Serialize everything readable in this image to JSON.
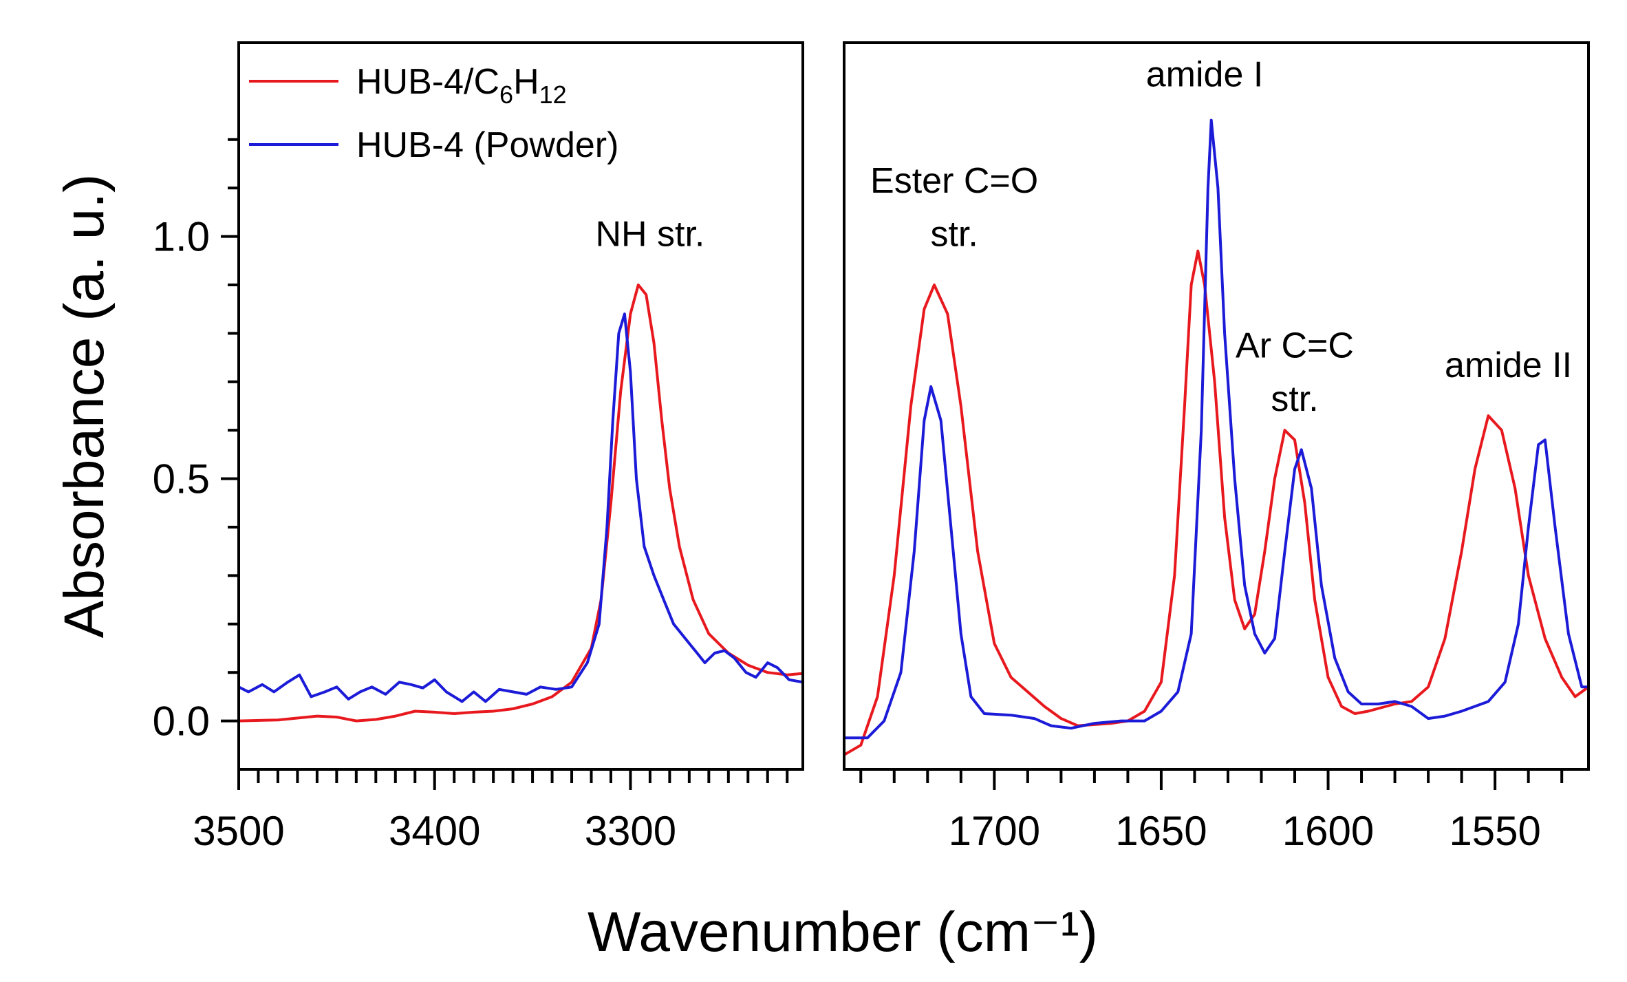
{
  "chart_data": [
    {
      "type": "line",
      "panel": "left",
      "xlim": [
        3500,
        3212
      ],
      "ylim": [
        -0.1,
        1.4
      ],
      "ylabel": "Absorbance (a. u.)",
      "xlabel": "Wavenumber (cm⁻¹)",
      "xticks": [
        3500,
        3400,
        3300
      ],
      "xtick_labels": [
        "3500",
        "3400",
        "3300"
      ],
      "yticks": [
        0.0,
        0.5,
        1.0
      ],
      "ytick_labels": [
        "0.0",
        "0.5",
        "1.0"
      ],
      "legend": {
        "position": "top-left",
        "entries": [
          {
            "label": "HUB-4/C",
            "sub1": "6",
            "mid": "H",
            "sub2": "12",
            "color": "#e8191e"
          },
          {
            "label": "HUB-4 (Powder)",
            "color": "#1b1bd8"
          }
        ]
      },
      "annotations": [
        {
          "text": "NH str.",
          "x": 3290,
          "y": 0.98
        }
      ],
      "series": [
        {
          "name": "HUB-4/C6H12",
          "color": "#e8191e",
          "points": [
            [
              3500,
              0.0
            ],
            [
              3480,
              0.002
            ],
            [
              3460,
              0.01
            ],
            [
              3450,
              0.008
            ],
            [
              3440,
              0.0
            ],
            [
              3430,
              0.003
            ],
            [
              3420,
              0.01
            ],
            [
              3410,
              0.02
            ],
            [
              3400,
              0.018
            ],
            [
              3390,
              0.015
            ],
            [
              3380,
              0.018
            ],
            [
              3370,
              0.02
            ],
            [
              3360,
              0.025
            ],
            [
              3350,
              0.035
            ],
            [
              3340,
              0.05
            ],
            [
              3330,
              0.08
            ],
            [
              3320,
              0.15
            ],
            [
              3315,
              0.25
            ],
            [
              3310,
              0.45
            ],
            [
              3305,
              0.68
            ],
            [
              3300,
              0.84
            ],
            [
              3296,
              0.9
            ],
            [
              3292,
              0.88
            ],
            [
              3288,
              0.78
            ],
            [
              3284,
              0.62
            ],
            [
              3280,
              0.48
            ],
            [
              3275,
              0.36
            ],
            [
              3268,
              0.25
            ],
            [
              3260,
              0.18
            ],
            [
              3250,
              0.14
            ],
            [
              3240,
              0.115
            ],
            [
              3230,
              0.1
            ],
            [
              3220,
              0.095
            ],
            [
              3212,
              0.098
            ]
          ]
        },
        {
          "name": "HUB-4 (Powder)",
          "color": "#1b1bd8",
          "points": [
            [
              3500,
              0.07
            ],
            [
              3495,
              0.06
            ],
            [
              3488,
              0.075
            ],
            [
              3482,
              0.06
            ],
            [
              3475,
              0.08
            ],
            [
              3469,
              0.095
            ],
            [
              3463,
              0.05
            ],
            [
              3456,
              0.06
            ],
            [
              3450,
              0.07
            ],
            [
              3444,
              0.045
            ],
            [
              3438,
              0.06
            ],
            [
              3432,
              0.07
            ],
            [
              3425,
              0.055
            ],
            [
              3418,
              0.08
            ],
            [
              3412,
              0.075
            ],
            [
              3406,
              0.068
            ],
            [
              3400,
              0.085
            ],
            [
              3394,
              0.06
            ],
            [
              3386,
              0.04
            ],
            [
              3380,
              0.06
            ],
            [
              3374,
              0.04
            ],
            [
              3367,
              0.065
            ],
            [
              3360,
              0.06
            ],
            [
              3353,
              0.055
            ],
            [
              3346,
              0.07
            ],
            [
              3338,
              0.065
            ],
            [
              3330,
              0.07
            ],
            [
              3322,
              0.12
            ],
            [
              3316,
              0.2
            ],
            [
              3312,
              0.4
            ],
            [
              3309,
              0.62
            ],
            [
              3306,
              0.8
            ],
            [
              3303,
              0.84
            ],
            [
              3300,
              0.72
            ],
            [
              3297,
              0.5
            ],
            [
              3293,
              0.36
            ],
            [
              3288,
              0.3
            ],
            [
              3283,
              0.25
            ],
            [
              3278,
              0.2
            ],
            [
              3274,
              0.18
            ],
            [
              3270,
              0.16
            ],
            [
              3266,
              0.14
            ],
            [
              3262,
              0.12
            ],
            [
              3257,
              0.14
            ],
            [
              3252,
              0.145
            ],
            [
              3247,
              0.13
            ],
            [
              3241,
              0.1
            ],
            [
              3236,
              0.09
            ],
            [
              3230,
              0.12
            ],
            [
              3225,
              0.11
            ],
            [
              3219,
              0.085
            ],
            [
              3212,
              0.08
            ]
          ]
        }
      ]
    },
    {
      "type": "line",
      "panel": "right",
      "xlim": [
        1745,
        1522
      ],
      "ylim": [
        -0.1,
        1.4
      ],
      "xticks": [
        1700,
        1650,
        1600,
        1550
      ],
      "xtick_labels": [
        "1700",
        "1650",
        "1600",
        "1550"
      ],
      "annotations": [
        {
          "text": "Ester C=O",
          "x": 1712,
          "y": 1.09
        },
        {
          "text": "str.",
          "x": 1712,
          "y": 0.98
        },
        {
          "text": "amide I",
          "x": 1637,
          "y": 1.31
        },
        {
          "text": "Ar C=C",
          "x": 1610,
          "y": 0.75
        },
        {
          "text": "str.",
          "x": 1610,
          "y": 0.64
        },
        {
          "text": "amide II",
          "x": 1546,
          "y": 0.71
        }
      ],
      "series": [
        {
          "name": "HUB-4/C6H12",
          "color": "#e8191e",
          "points": [
            [
              1745,
              -0.07
            ],
            [
              1740,
              -0.05
            ],
            [
              1735,
              0.05
            ],
            [
              1730,
              0.3
            ],
            [
              1725,
              0.65
            ],
            [
              1721,
              0.85
            ],
            [
              1718,
              0.9
            ],
            [
              1714,
              0.84
            ],
            [
              1710,
              0.65
            ],
            [
              1705,
              0.35
            ],
            [
              1700,
              0.16
            ],
            [
              1695,
              0.09
            ],
            [
              1690,
              0.06
            ],
            [
              1685,
              0.03
            ],
            [
              1680,
              0.005
            ],
            [
              1675,
              -0.01
            ],
            [
              1665,
              -0.005
            ],
            [
              1660,
              0.0
            ],
            [
              1655,
              0.02
            ],
            [
              1650,
              0.08
            ],
            [
              1646,
              0.3
            ],
            [
              1643,
              0.65
            ],
            [
              1641,
              0.9
            ],
            [
              1639,
              0.97
            ],
            [
              1637,
              0.9
            ],
            [
              1634,
              0.7
            ],
            [
              1631,
              0.42
            ],
            [
              1628,
              0.25
            ],
            [
              1625,
              0.19
            ],
            [
              1622,
              0.22
            ],
            [
              1619,
              0.35
            ],
            [
              1616,
              0.5
            ],
            [
              1613,
              0.6
            ],
            [
              1610,
              0.58
            ],
            [
              1607,
              0.45
            ],
            [
              1604,
              0.25
            ],
            [
              1600,
              0.09
            ],
            [
              1596,
              0.03
            ],
            [
              1592,
              0.015
            ],
            [
              1588,
              0.02
            ],
            [
              1580,
              0.035
            ],
            [
              1575,
              0.04
            ],
            [
              1570,
              0.07
            ],
            [
              1565,
              0.17
            ],
            [
              1560,
              0.35
            ],
            [
              1556,
              0.52
            ],
            [
              1552,
              0.63
            ],
            [
              1548,
              0.6
            ],
            [
              1544,
              0.48
            ],
            [
              1540,
              0.3
            ],
            [
              1535,
              0.17
            ],
            [
              1530,
              0.09
            ],
            [
              1526,
              0.05
            ],
            [
              1522,
              0.07
            ]
          ]
        },
        {
          "name": "HUB-4 (Powder)",
          "color": "#1b1bd8",
          "points": [
            [
              1745,
              -0.035
            ],
            [
              1738,
              -0.035
            ],
            [
              1733,
              0.0
            ],
            [
              1728,
              0.1
            ],
            [
              1724,
              0.35
            ],
            [
              1721,
              0.62
            ],
            [
              1719,
              0.69
            ],
            [
              1716,
              0.62
            ],
            [
              1713,
              0.4
            ],
            [
              1710,
              0.18
            ],
            [
              1707,
              0.05
            ],
            [
              1703,
              0.015
            ],
            [
              1695,
              0.012
            ],
            [
              1688,
              0.005
            ],
            [
              1683,
              -0.01
            ],
            [
              1677,
              -0.015
            ],
            [
              1670,
              -0.005
            ],
            [
              1662,
              0.0
            ],
            [
              1655,
              0.0
            ],
            [
              1650,
              0.02
            ],
            [
              1645,
              0.06
            ],
            [
              1641,
              0.18
            ],
            [
              1638,
              0.6
            ],
            [
              1636,
              1.1
            ],
            [
              1635,
              1.24
            ],
            [
              1633,
              1.1
            ],
            [
              1631,
              0.8
            ],
            [
              1628,
              0.5
            ],
            [
              1625,
              0.28
            ],
            [
              1622,
              0.18
            ],
            [
              1619,
              0.14
            ],
            [
              1616,
              0.17
            ],
            [
              1613,
              0.35
            ],
            [
              1610,
              0.52
            ],
            [
              1608,
              0.56
            ],
            [
              1605,
              0.48
            ],
            [
              1602,
              0.28
            ],
            [
              1598,
              0.13
            ],
            [
              1594,
              0.06
            ],
            [
              1590,
              0.035
            ],
            [
              1585,
              0.035
            ],
            [
              1580,
              0.04
            ],
            [
              1575,
              0.03
            ],
            [
              1570,
              0.005
            ],
            [
              1565,
              0.01
            ],
            [
              1560,
              0.02
            ],
            [
              1552,
              0.04
            ],
            [
              1547,
              0.08
            ],
            [
              1543,
              0.2
            ],
            [
              1540,
              0.4
            ],
            [
              1537,
              0.57
            ],
            [
              1535,
              0.58
            ],
            [
              1532,
              0.4
            ],
            [
              1528,
              0.18
            ],
            [
              1524,
              0.07
            ],
            [
              1522,
              0.07
            ]
          ]
        }
      ]
    }
  ]
}
